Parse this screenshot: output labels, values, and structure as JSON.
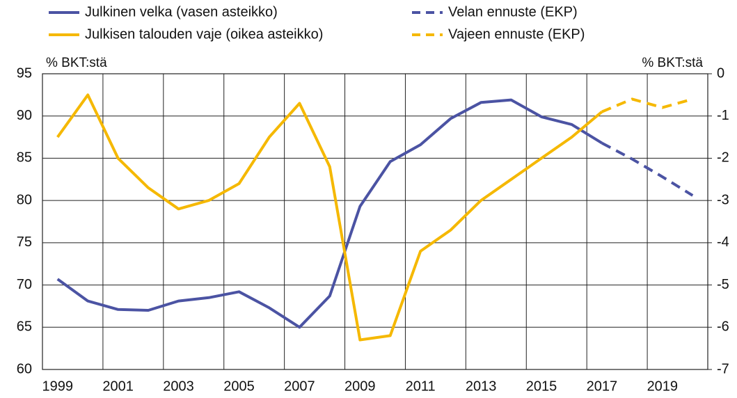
{
  "chart_data": {
    "type": "line",
    "legend": "top",
    "ylabel": "% BKT:stä",
    "y2label": "% BKT:stä",
    "categories": [
      "1999",
      null,
      "2001",
      null,
      "2003",
      null,
      "2005",
      null,
      "2007",
      null,
      "2009",
      null,
      "2011",
      null,
      "2013",
      null,
      "2015",
      null,
      "2017",
      null,
      "2019",
      null
    ],
    "ylim": [
      60,
      95
    ],
    "yticks": [
      60,
      65,
      70,
      75,
      80,
      85,
      90,
      95
    ],
    "y2lim": [
      -7,
      0
    ],
    "y2ticks": [
      -7,
      -6,
      -5,
      -4,
      -3,
      -2,
      -1,
      0
    ],
    "grid": true,
    "series": [
      {
        "name": "Julkinen velka (vasen asteikko)",
        "color": "#4b53a3",
        "dashed": false,
        "axis": "y",
        "values": [
          70.7,
          68.1,
          67.1,
          67.0,
          68.1,
          68.5,
          69.2,
          67.3,
          65.0,
          68.7,
          79.3,
          84.6,
          86.6,
          89.7,
          91.6,
          91.9,
          89.9,
          89.0,
          86.8,
          null,
          null,
          null
        ]
      },
      {
        "name": "Julkisen talouden vaje (oikea asteikko)",
        "color": "#f5b800",
        "dashed": false,
        "axis": "y2",
        "values": [
          -1.5,
          -0.5,
          -2.0,
          -2.7,
          -3.2,
          -3.0,
          -2.6,
          -1.5,
          -0.7,
          -2.2,
          -6.3,
          -6.2,
          -4.2,
          -3.7,
          -3.0,
          -2.5,
          -2.0,
          -1.5,
          -0.9,
          null,
          null,
          null
        ]
      },
      {
        "name": "Velan ennuste (EKP)",
        "color": "#4b53a3",
        "dashed": true,
        "axis": "y",
        "values": [
          null,
          null,
          null,
          null,
          null,
          null,
          null,
          null,
          null,
          null,
          null,
          null,
          null,
          null,
          null,
          null,
          null,
          null,
          86.8,
          84.9,
          82.8,
          80.6
        ]
      },
      {
        "name": "Vajeen ennuste (EKP)",
        "color": "#f5b800",
        "dashed": true,
        "axis": "y2",
        "values": [
          null,
          null,
          null,
          null,
          null,
          null,
          null,
          null,
          null,
          null,
          null,
          null,
          null,
          null,
          null,
          null,
          null,
          null,
          -0.9,
          -0.6,
          -0.8,
          -0.6
        ]
      }
    ]
  }
}
